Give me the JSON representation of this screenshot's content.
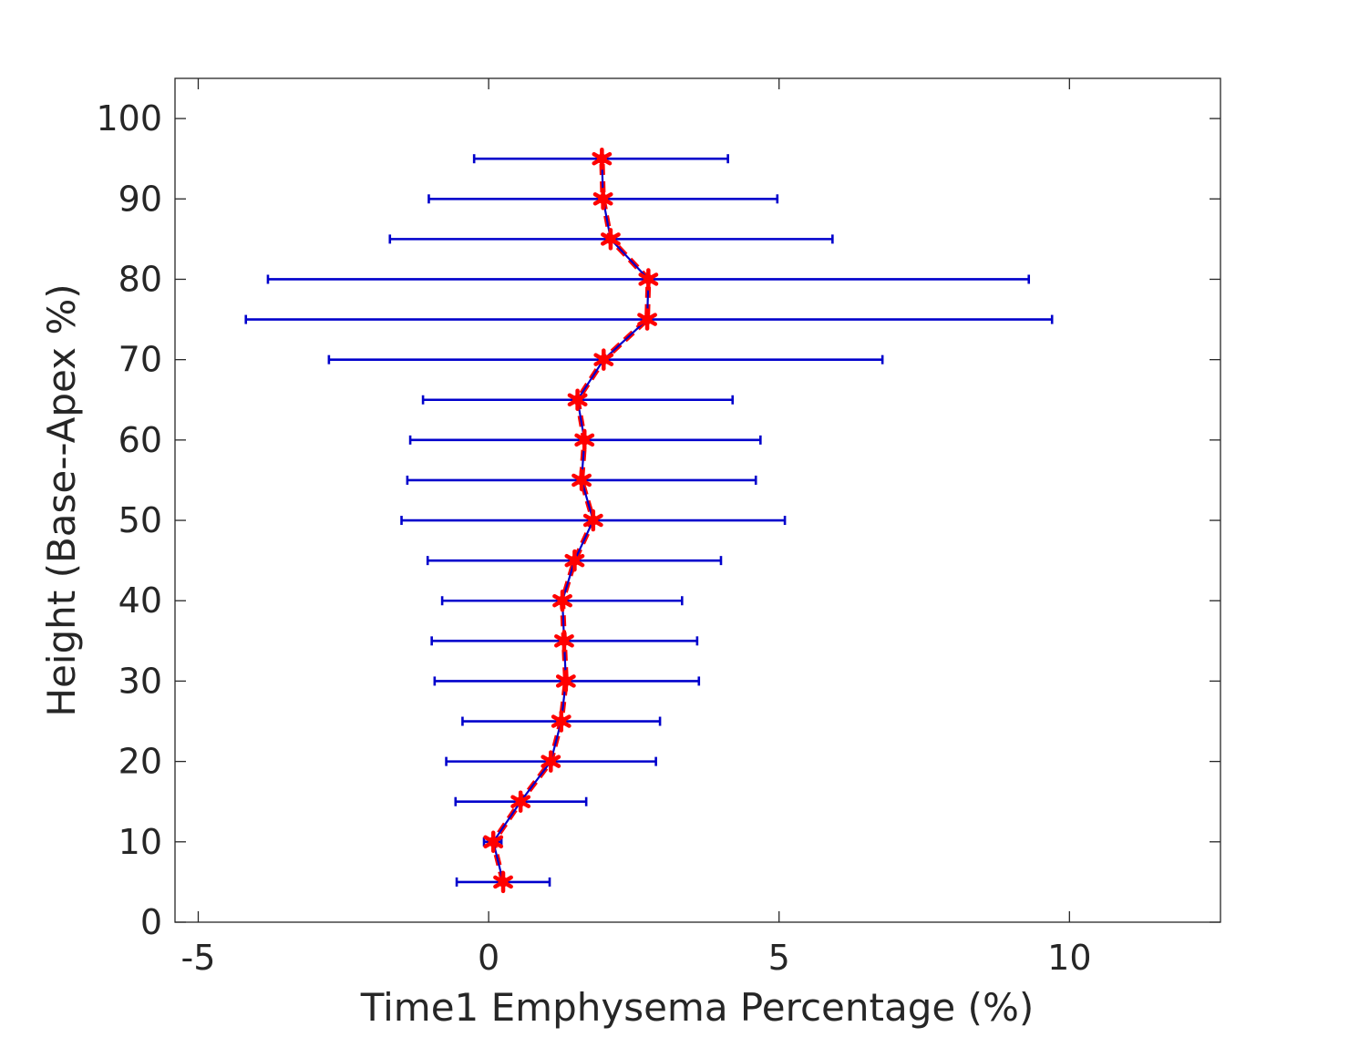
{
  "chart_data": {
    "type": "errorbar-line",
    "xlabel": "Time1 Emphysema Percentage (%)",
    "ylabel": "Height (Base--Apex %)",
    "xlim": [
      -5.4,
      12.6
    ],
    "ylim": [
      0,
      105
    ],
    "xticks": [
      -5,
      0,
      5,
      10
    ],
    "xtick_labels": [
      "-5",
      "0",
      "5",
      "10"
    ],
    "yticks": [
      0,
      10,
      20,
      30,
      40,
      50,
      60,
      70,
      80,
      90,
      100
    ],
    "ytick_labels": [
      "0",
      "10",
      "20",
      "30",
      "40",
      "50",
      "60",
      "70",
      "80",
      "90",
      "100"
    ],
    "grid": false,
    "series": [
      {
        "line_color": "#0000cc",
        "marker_color": "#ff0000",
        "marker": "star",
        "points": [
          {
            "y": 5,
            "x": 0.25,
            "lo": -0.55,
            "hi": 1.05
          },
          {
            "y": 10,
            "x": 0.08,
            "lo": -0.08,
            "hi": 0.22
          },
          {
            "y": 15,
            "x": 0.55,
            "lo": -0.57,
            "hi": 1.68
          },
          {
            "y": 20,
            "x": 1.07,
            "lo": -0.73,
            "hi": 2.88
          },
          {
            "y": 25,
            "x": 1.25,
            "lo": -0.45,
            "hi": 2.95
          },
          {
            "y": 30,
            "x": 1.33,
            "lo": -0.93,
            "hi": 3.62
          },
          {
            "y": 35,
            "x": 1.3,
            "lo": -0.98,
            "hi": 3.59
          },
          {
            "y": 40,
            "x": 1.27,
            "lo": -0.8,
            "hi": 3.33
          },
          {
            "y": 45,
            "x": 1.48,
            "lo": -1.05,
            "hi": 4.0
          },
          {
            "y": 50,
            "x": 1.8,
            "lo": -1.5,
            "hi": 5.1
          },
          {
            "y": 55,
            "x": 1.6,
            "lo": -1.4,
            "hi": 4.6
          },
          {
            "y": 60,
            "x": 1.65,
            "lo": -1.35,
            "hi": 4.68
          },
          {
            "y": 65,
            "x": 1.53,
            "lo": -1.13,
            "hi": 4.2
          },
          {
            "y": 70,
            "x": 1.98,
            "lo": -2.75,
            "hi": 6.78
          },
          {
            "y": 75,
            "x": 2.73,
            "lo": -4.18,
            "hi": 9.7
          },
          {
            "y": 80,
            "x": 2.75,
            "lo": -3.8,
            "hi": 9.3
          },
          {
            "y": 85,
            "x": 2.1,
            "lo": -1.7,
            "hi": 5.92
          },
          {
            "y": 90,
            "x": 1.97,
            "lo": -1.03,
            "hi": 4.97
          },
          {
            "y": 95,
            "x": 1.95,
            "lo": -0.25,
            "hi": 4.12
          }
        ]
      }
    ]
  }
}
